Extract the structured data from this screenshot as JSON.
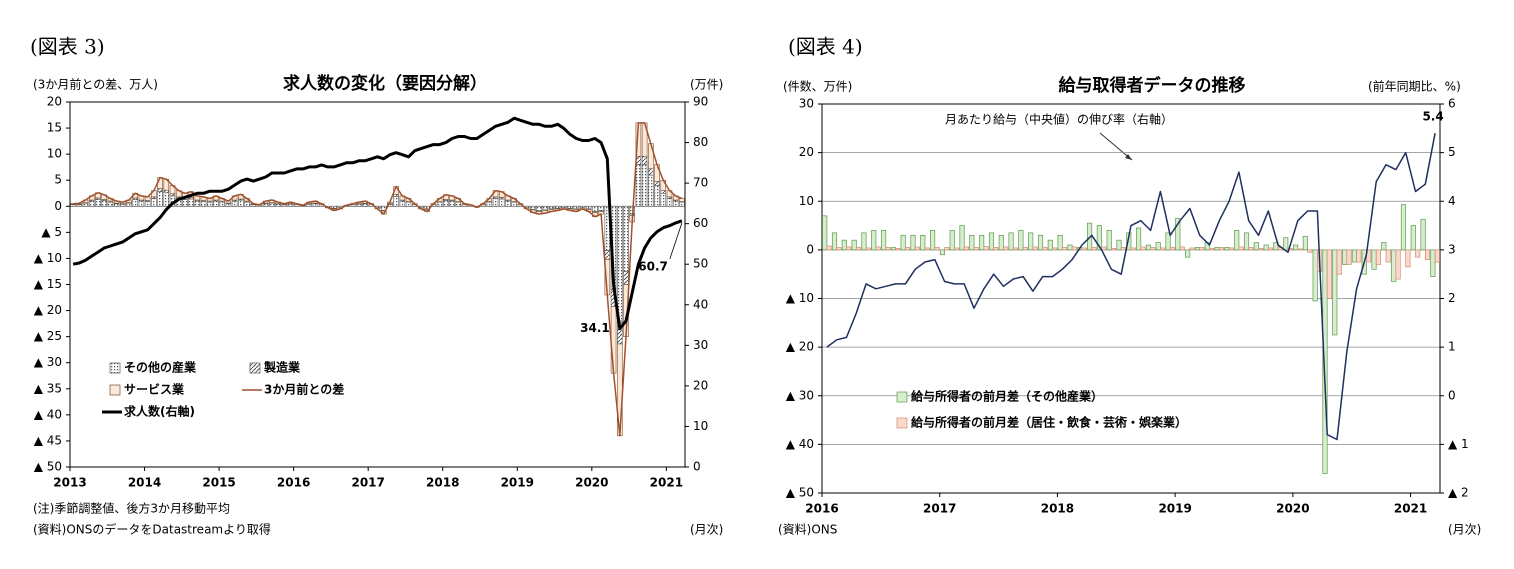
{
  "chart_data": [
    {
      "type": "bar",
      "figure_label": "(図表 3)",
      "title": "求人数の変化（要因分解）",
      "y_label": "(3か月前との差、万人)",
      "y2_label": "(万件)",
      "x_label": "(月次)",
      "notes": [
        "(注)季節調整値、後方3か月移動平均",
        "(資料)ONSのデータをDatastreamより取得"
      ],
      "stacked": true,
      "grid": false,
      "categories": [
        "2013",
        null,
        null,
        null,
        null,
        null,
        null,
        null,
        null,
        null,
        null,
        null,
        "2014",
        null,
        null,
        null,
        null,
        null,
        null,
        null,
        null,
        null,
        null,
        null,
        "2015",
        null,
        null,
        null,
        null,
        null,
        null,
        null,
        null,
        null,
        null,
        null,
        "2016",
        null,
        null,
        null,
        null,
        null,
        null,
        null,
        null,
        null,
        null,
        null,
        "2017",
        null,
        null,
        null,
        null,
        null,
        null,
        null,
        null,
        null,
        null,
        null,
        "2018",
        null,
        null,
        null,
        null,
        null,
        null,
        null,
        null,
        null,
        null,
        null,
        "2019",
        null,
        null,
        null,
        null,
        null,
        null,
        null,
        null,
        null,
        null,
        null,
        "2020",
        null,
        null,
        null,
        null,
        null,
        null,
        null,
        null,
        null,
        null,
        null,
        "2021",
        null,
        null
      ],
      "ylim": [
        -50,
        20
      ],
      "yticks": [
        20,
        15,
        10,
        5,
        0,
        {
          "value": -5,
          "label": "▲ 5"
        },
        {
          "value": -10,
          "label": "▲ 10"
        },
        {
          "value": -15,
          "label": "▲ 15"
        },
        {
          "value": -20,
          "label": "▲ 20"
        },
        {
          "value": -25,
          "label": "▲ 25"
        },
        {
          "value": -30,
          "label": "▲ 30"
        },
        {
          "value": -35,
          "label": "▲ 35"
        },
        {
          "value": -40,
          "label": "▲ 40"
        },
        {
          "value": -45,
          "label": "▲ 45"
        },
        {
          "value": -50,
          "label": "▲ 50"
        }
      ],
      "y2lim": [
        0,
        90
      ],
      "y2ticks": [
        90,
        80,
        70,
        60,
        50,
        40,
        30,
        20,
        10,
        0
      ],
      "series": [
        {
          "name": "その他の産業",
          "kind": "bar",
          "pattern": "dots",
          "color": "#555555",
          "values": [
            0.3,
            0.3,
            0.6,
            1.0,
            1.3,
            1.1,
            0.8,
            0.5,
            0.4,
            0.6,
            1.3,
            1.0,
            0.9,
            1.5,
            2.8,
            2.6,
            2.0,
            1.5,
            1.3,
            1.4,
            1.0,
            0.9,
            0.8,
            1.0,
            0.8,
            0.5,
            1.0,
            1.2,
            0.8,
            0.3,
            0.2,
            0.5,
            0.6,
            0.4,
            0.3,
            0.4,
            0.3,
            0.1,
            0.4,
            0.5,
            0.3,
            -0.2,
            -0.4,
            -0.3,
            0.1,
            0.3,
            0.4,
            0.5,
            0.3,
            -0.3,
            -0.8,
            0.4,
            1.9,
            1.0,
            0.8,
            0.3,
            -0.3,
            -0.5,
            0.3,
            0.8,
            1.1,
            1.0,
            0.8,
            0.3,
            0.2,
            -0.1,
            0.3,
            0.8,
            1.5,
            1.4,
            1.0,
            0.8,
            0.3,
            -0.3,
            -0.6,
            -0.8,
            -0.7,
            -0.5,
            -0.4,
            -0.3,
            -0.4,
            -0.5,
            -0.3,
            -0.5,
            -1.0,
            -0.8,
            -8.5,
            -16.0,
            -22.0,
            -12.5,
            -1.5,
            8.0,
            8.0,
            6.0,
            4.0,
            2.5,
            1.5,
            1.0,
            0.8
          ]
        },
        {
          "name": "製造業",
          "kind": "bar",
          "pattern": "hatch",
          "color": "#555555",
          "values": [
            0.1,
            0.1,
            0.1,
            0.2,
            0.3,
            0.2,
            0.2,
            0.1,
            0.1,
            0.1,
            0.3,
            0.2,
            0.2,
            0.3,
            0.6,
            0.5,
            0.4,
            0.3,
            0.3,
            0.3,
            0.2,
            0.2,
            0.2,
            0.2,
            0.2,
            0.1,
            0.2,
            0.2,
            0.2,
            0.1,
            0.0,
            0.1,
            0.1,
            0.1,
            0.1,
            0.1,
            0.0,
            0.0,
            0.1,
            0.1,
            0.0,
            0.0,
            -0.1,
            0.0,
            0.0,
            0.0,
            0.1,
            0.1,
            0.0,
            0.0,
            -0.1,
            0.1,
            0.4,
            0.2,
            0.1,
            0.0,
            0.0,
            -0.1,
            0.0,
            0.1,
            0.2,
            0.2,
            0.1,
            0.0,
            0.0,
            0.0,
            0.0,
            0.1,
            0.3,
            0.3,
            0.2,
            0.1,
            0.0,
            0.0,
            -0.1,
            -0.2,
            -0.1,
            -0.1,
            -0.1,
            0.0,
            -0.1,
            -0.1,
            0.0,
            -0.1,
            -0.2,
            -0.2,
            -1.7,
            -3.2,
            -4.4,
            -2.5,
            -0.3,
            1.6,
            1.6,
            1.2,
            0.8,
            0.5,
            0.3,
            0.2,
            0.1
          ]
        },
        {
          "name": "サービス業",
          "kind": "bar",
          "pattern": "solid",
          "color": "#fde9d9",
          "values": [
            0.1,
            0.2,
            0.5,
            0.8,
            1.0,
            0.9,
            0.5,
            0.4,
            0.3,
            0.5,
            0.9,
            0.8,
            0.7,
            1.2,
            2.1,
            2.1,
            1.6,
            1.2,
            0.9,
            1.1,
            0.8,
            0.7,
            0.5,
            0.8,
            0.5,
            0.4,
            0.8,
            0.9,
            0.5,
            0.1,
            0.1,
            0.4,
            0.5,
            0.3,
            0.1,
            0.3,
            0.2,
            0.1,
            0.3,
            0.4,
            0.2,
            -0.1,
            -0.3,
            -0.2,
            0.1,
            0.2,
            0.3,
            0.4,
            0.2,
            -0.2,
            -0.6,
            0.3,
            1.5,
            0.8,
            0.6,
            0.2,
            -0.2,
            -0.4,
            0.2,
            0.6,
            0.9,
            0.8,
            0.6,
            0.2,
            0.1,
            -0.1,
            0.2,
            0.6,
            1.2,
            1.1,
            0.8,
            0.6,
            0.2,
            -0.2,
            -0.5,
            -0.5,
            -0.5,
            -0.4,
            -0.3,
            -0.2,
            -0.3,
            -0.4,
            -0.2,
            -0.4,
            -0.8,
            -0.5,
            -6.8,
            -12.8,
            -17.6,
            -10.0,
            -1.2,
            6.4,
            6.4,
            4.8,
            3.2,
            2.0,
            1.2,
            0.8,
            0.6
          ]
        },
        {
          "name": "3か月前との差",
          "kind": "line",
          "color": "#a0522d",
          "width": 1.5,
          "values": [
            0.5,
            0.6,
            1.2,
            2.0,
            2.6,
            2.2,
            1.5,
            1.0,
            0.8,
            1.2,
            2.5,
            2.0,
            1.8,
            3.0,
            5.5,
            5.2,
            4.0,
            3.0,
            2.5,
            2.8,
            2.0,
            1.8,
            1.5,
            2.0,
            1.5,
            1.0,
            2.0,
            2.3,
            1.5,
            0.5,
            0.3,
            1.0,
            1.2,
            0.8,
            0.5,
            0.8,
            0.5,
            0.2,
            0.8,
            1.0,
            0.5,
            -0.3,
            -0.8,
            -0.5,
            0.2,
            0.5,
            0.8,
            1.0,
            0.5,
            -0.5,
            -1.5,
            0.8,
            3.8,
            2.0,
            1.5,
            0.5,
            -0.5,
            -1.0,
            0.5,
            1.5,
            2.2,
            2.0,
            1.5,
            0.5,
            0.3,
            -0.2,
            0.5,
            1.5,
            3.0,
            2.8,
            2.0,
            1.5,
            0.5,
            -0.5,
            -1.2,
            -1.5,
            -1.3,
            -1.0,
            -0.8,
            -0.5,
            -0.8,
            -1.0,
            -0.5,
            -1.0,
            -2.0,
            -1.5,
            -17.0,
            -32.0,
            -44.0,
            -25.0,
            -3.0,
            16.0,
            16.0,
            12.0,
            8.0,
            5.0,
            3.0,
            2.0,
            1.5
          ]
        },
        {
          "name": "求人数(右軸)",
          "kind": "line",
          "axis": "y2",
          "color": "#000000",
          "width": 3,
          "label_points": [
            "min",
            "last"
          ],
          "values": [
            50.0,
            50.3,
            51.0,
            52.0,
            53.0,
            54.0,
            54.5,
            55.0,
            55.5,
            56.5,
            57.5,
            58.0,
            58.5,
            60.0,
            61.5,
            63.5,
            65.0,
            66.0,
            66.5,
            67.0,
            67.5,
            67.5,
            68.0,
            68.0,
            68.0,
            68.5,
            69.5,
            70.5,
            71.0,
            70.5,
            71.0,
            71.5,
            72.5,
            72.5,
            72.5,
            73.0,
            73.5,
            73.5,
            74.0,
            74.0,
            74.5,
            74.0,
            74.0,
            74.5,
            75.0,
            75.0,
            75.5,
            75.5,
            76.0,
            76.5,
            76.0,
            77.0,
            77.5,
            77.0,
            76.5,
            78.0,
            78.5,
            79.0,
            79.5,
            79.5,
            80.0,
            81.0,
            81.5,
            81.5,
            81.0,
            81.0,
            82.0,
            83.0,
            84.0,
            84.5,
            85.0,
            86.0,
            85.5,
            85.0,
            84.5,
            84.5,
            84.0,
            84.0,
            84.5,
            83.5,
            82.0,
            81.0,
            80.5,
            80.5,
            81.0,
            80.0,
            76.0,
            45.0,
            34.1,
            36.0,
            43.0,
            50.0,
            54.0,
            56.5,
            58.0,
            59.0,
            59.5,
            60.2,
            60.7
          ]
        }
      ]
    },
    {
      "type": "bar",
      "figure_label": "(図表 4)",
      "title": "給与取得者データの推移",
      "y_label": "(件数、万件)",
      "y2_label": "(前年同期比、%)",
      "x_label": "(月次)",
      "notes": [
        "(資料)ONS"
      ],
      "annotation": "月あたり給与（中央値）の伸び率（右軸）",
      "stacked": false,
      "grid": true,
      "categories": [
        "2016",
        null,
        null,
        null,
        null,
        null,
        null,
        null,
        null,
        null,
        null,
        null,
        "2017",
        null,
        null,
        null,
        null,
        null,
        null,
        null,
        null,
        null,
        null,
        null,
        "2018",
        null,
        null,
        null,
        null,
        null,
        null,
        null,
        null,
        null,
        null,
        null,
        "2019",
        null,
        null,
        null,
        null,
        null,
        null,
        null,
        null,
        null,
        null,
        null,
        "2020",
        null,
        null,
        null,
        null,
        null,
        null,
        null,
        null,
        null,
        null,
        null,
        "2021",
        null,
        null
      ],
      "ylim": [
        -50,
        30
      ],
      "yticks": [
        30,
        20,
        10,
        0,
        {
          "value": -10,
          "label": "▲ 10"
        },
        {
          "value": -20,
          "label": "▲ 20"
        },
        {
          "value": -30,
          "label": "▲ 30"
        },
        {
          "value": -40,
          "label": "▲ 40"
        },
        {
          "value": -50,
          "label": "▲ 50"
        }
      ],
      "y2lim": [
        -2,
        6
      ],
      "y2ticks": [
        6,
        5,
        4,
        3,
        2,
        1,
        0,
        {
          "value": -1,
          "label": "▲ 1"
        },
        {
          "value": -2,
          "label": "▲ 2"
        }
      ],
      "series": [
        {
          "name": "給与所得者の前月差（その他産業）",
          "kind": "bar",
          "pattern": "solid",
          "color": "#d8ecd0",
          "stroke": "#5a9a4a",
          "values": [
            7,
            3.5,
            2,
            2,
            3.5,
            4,
            4,
            0.5,
            3,
            3,
            3,
            4,
            -1,
            4,
            5,
            3,
            3,
            3.5,
            3,
            3.5,
            4,
            3.5,
            3,
            2,
            3,
            1,
            0.5,
            5.5,
            5,
            4,
            2,
            3.5,
            4.5,
            1,
            1.5,
            3.5,
            6.5,
            -1.5,
            0.5,
            1.5,
            0.5,
            0.5,
            4,
            3.5,
            1.5,
            1,
            1.5,
            2.5,
            1,
            2.8,
            -10.5,
            -46,
            -17.5,
            -3,
            -2.5,
            -5,
            -4,
            1.5,
            -6.5,
            9.3,
            5,
            6.3,
            -5.5
          ]
        },
        {
          "name": "給与所得者の前月差（居住・飲食・芸術・娯楽業）",
          "kind": "bar",
          "pattern": "solid",
          "color": "#f9d9cc",
          "stroke": "#d08a70",
          "values": [
            0.8,
            0.5,
            0.6,
            0.5,
            0.4,
            0.6,
            0.5,
            0.3,
            0.5,
            0.6,
            0.4,
            0.5,
            0.5,
            0.4,
            0.6,
            0.5,
            0.7,
            0.5,
            0.6,
            0.4,
            0.5,
            0.6,
            0.5,
            0.4,
            0.5,
            0.6,
            0.4,
            0.5,
            0.6,
            0.3,
            0.5,
            0.4,
            0.6,
            0.5,
            0.4,
            0.5,
            0.6,
            0.4,
            0.5,
            0.3,
            0.5,
            0.4,
            0.6,
            0.5,
            0.3,
            0.4,
            0.5,
            0.3,
            0.2,
            -0.5,
            -4.5,
            -10,
            -5,
            -3,
            -2.5,
            -2.5,
            -3,
            -2.5,
            -6,
            -3.5,
            -1.5,
            -2,
            -2.5
          ]
        },
        {
          "name": "月あたり給与(中央値)の伸び率",
          "kind": "line",
          "axis": "y2",
          "color": "#1f2f5f",
          "width": 1.5,
          "legend": false,
          "label_points": [
            "last"
          ],
          "values": [
            1.0,
            1.15,
            1.2,
            1.7,
            2.3,
            2.2,
            2.25,
            2.3,
            2.3,
            2.6,
            2.75,
            2.8,
            2.35,
            2.3,
            2.3,
            1.8,
            2.2,
            2.5,
            2.25,
            2.4,
            2.45,
            2.15,
            2.45,
            2.45,
            2.6,
            2.8,
            3.1,
            3.3,
            3.0,
            2.6,
            2.5,
            3.5,
            3.6,
            3.4,
            4.2,
            3.3,
            3.6,
            3.85,
            3.3,
            3.1,
            3.6,
            4.0,
            4.6,
            3.6,
            3.3,
            3.8,
            3.1,
            2.95,
            3.6,
            3.8,
            3.8,
            -0.8,
            -0.9,
            0.9,
            2.2,
            2.9,
            4.4,
            4.75,
            4.65,
            5.0,
            4.2,
            4.35,
            5.4
          ]
        }
      ]
    }
  ]
}
